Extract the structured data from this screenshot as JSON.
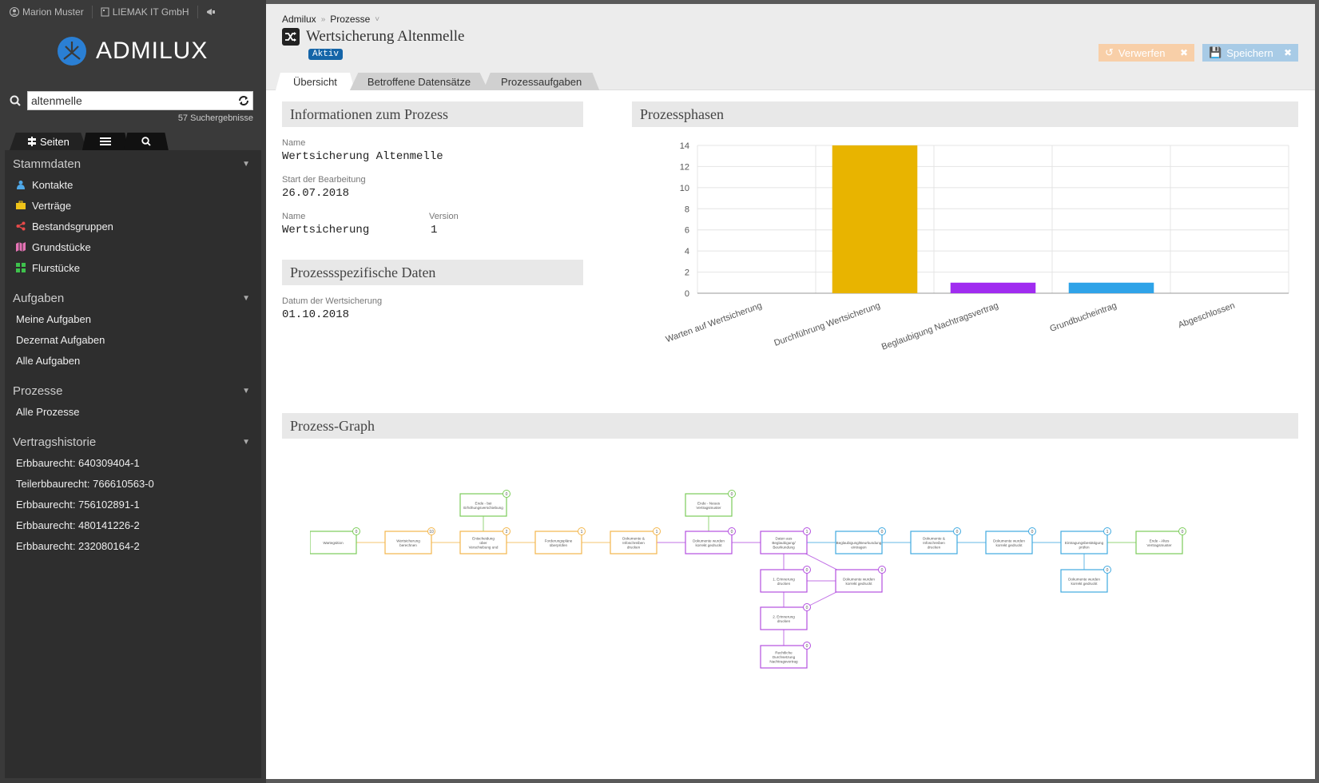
{
  "user": {
    "name": "Marion Muster",
    "company": "LIEMAK IT GmbH"
  },
  "brand": "ADMILUX",
  "search": {
    "value": "altenmelle",
    "result_count": "57 Suchergebnisse"
  },
  "side_tabs": [
    {
      "label": "Seiten"
    },
    {
      "label": ""
    },
    {
      "label": ""
    }
  ],
  "sidebar": {
    "sections": [
      {
        "title": "Stammdaten",
        "items": [
          {
            "label": "Kontakte",
            "icon": "person-icon",
            "color": "#4fa8e8"
          },
          {
            "label": "Verträge",
            "icon": "briefcase-icon",
            "color": "#f0c419"
          },
          {
            "label": "Bestandsgruppen",
            "icon": "share-icon",
            "color": "#e84a4a"
          },
          {
            "label": "Grundstücke",
            "icon": "map-icon",
            "color": "#e573b5"
          },
          {
            "label": "Flurstücke",
            "icon": "grid-icon",
            "color": "#3ec24c"
          }
        ]
      },
      {
        "title": "Aufgaben",
        "items": [
          {
            "label": "Meine Aufgaben"
          },
          {
            "label": "Dezernat Aufgaben"
          },
          {
            "label": "Alle Aufgaben"
          }
        ]
      },
      {
        "title": "Prozesse",
        "items": [
          {
            "label": "Alle Prozesse"
          }
        ]
      },
      {
        "title": "Vertragshistorie",
        "items": [
          {
            "label": "Erbbaurecht: 640309404-1"
          },
          {
            "label": "Teilerbbaurecht: 766610563-0"
          },
          {
            "label": "Erbbaurecht: 756102891-1"
          },
          {
            "label": "Erbbaurecht: 480141226-2"
          },
          {
            "label": "Erbbaurecht: 232080164-2"
          }
        ]
      }
    ]
  },
  "breadcrumb": {
    "root": "Admilux",
    "current": "Prozesse"
  },
  "page": {
    "title": "Wertsicherung Altenmelle",
    "status": "Aktiv"
  },
  "toolbar": {
    "discard_label": "Verwerfen",
    "save_label": "Speichern"
  },
  "tabs": [
    {
      "label": "Übersicht"
    },
    {
      "label": "Betroffene Datensätze"
    },
    {
      "label": "Prozessaufgaben"
    }
  ],
  "info": {
    "title": "Informationen zum Prozess",
    "name_label": "Name",
    "name_value": "Wertsicherung Altenmelle",
    "start_label": "Start der Bearbeitung",
    "start_value": "26.07.2018",
    "name2_label": "Name",
    "name2_value": "Wertsicherung",
    "version_label": "Version",
    "version_value": "1"
  },
  "specific": {
    "title": "Prozessspezifische Daten",
    "date_label": "Datum der Wertsicherung",
    "date_value": "01.10.2018"
  },
  "phases_title": "Prozessphasen",
  "graph_title": "Prozess-Graph",
  "chart_data": {
    "type": "bar",
    "categories": [
      "Warten auf Wertsicherung",
      "Durchführung Wertsicherung",
      "Beglaubigung Nachtragsvertrag",
      "Grundbucheintrag",
      "Abgeschlossen"
    ],
    "values": [
      0,
      14,
      1,
      1,
      0
    ],
    "colors": [
      "#cccccc",
      "#e8b400",
      "#a02cf0",
      "#2fa3e8",
      "#cccccc"
    ],
    "ylim": [
      0,
      14
    ],
    "yticks": [
      0,
      2,
      4,
      6,
      8,
      10,
      12,
      14
    ],
    "grid": true,
    "title": "",
    "xlabel": "",
    "ylabel": ""
  },
  "process_graph": {
    "nodes": [
      {
        "label": "Wartegsition",
        "count": "0",
        "color": "#7ccc5a"
      },
      {
        "label": "Wertsicherung berechnen",
        "count": "10",
        "color": "#f3b64c"
      },
      {
        "label": "Entscheidung über Verschiebung und Vertragsumstellung",
        "count": "2",
        "color": "#f3b64c"
      },
      {
        "label": "Ende - bei Erhöhungsverschiebung",
        "count": "0",
        "color": "#7ccc5a"
      },
      {
        "label": "Forderungspläne überprüfen",
        "count": "1",
        "color": "#f3b64c"
      },
      {
        "label": "Dokumente & Infoschreiben drucken",
        "count": "1",
        "color": "#f3b64c"
      },
      {
        "label": "Dokumente wurden korrekt gedruckt",
        "count": "0",
        "color": "#b34fe0"
      },
      {
        "label": "Ende - Neues Vertragsmuster",
        "count": "0",
        "color": "#7ccc5a"
      },
      {
        "label": "Daten aus Beglaubigung/ Beurkundung prüfen",
        "count": "1",
        "color": "#b34fe0"
      },
      {
        "label": "1. Erinnerung drucken",
        "count": "0",
        "color": "#b34fe0"
      },
      {
        "label": "Dokumente wurden korrekt gedruckt",
        "count": "0",
        "color": "#b34fe0"
      },
      {
        "label": "2. Erinnerung drucken",
        "count": "0",
        "color": "#b34fe0"
      },
      {
        "label": "Rechtliche Durchsetzung Nachtragsvertrag",
        "count": "0",
        "color": "#b34fe0"
      },
      {
        "label": "Beglaubigung/Beurkundung eintragen",
        "count": "0",
        "color": "#3fa9e0"
      },
      {
        "label": "Dokumente & Infoschreiben drucken",
        "count": "0",
        "color": "#3fa9e0"
      },
      {
        "label": "Dokumente wurden korrekt gedruckt",
        "count": "0",
        "color": "#3fa9e0"
      },
      {
        "label": "Eintragungsbestätigung prüfen",
        "count": "1",
        "color": "#3fa9e0"
      },
      {
        "label": "Dokumente wurden korrekt gedruckt",
        "count": "0",
        "color": "#3fa9e0"
      },
      {
        "label": "Ende - Altes Vertragsmuster",
        "count": "0",
        "color": "#7ccc5a"
      }
    ]
  }
}
